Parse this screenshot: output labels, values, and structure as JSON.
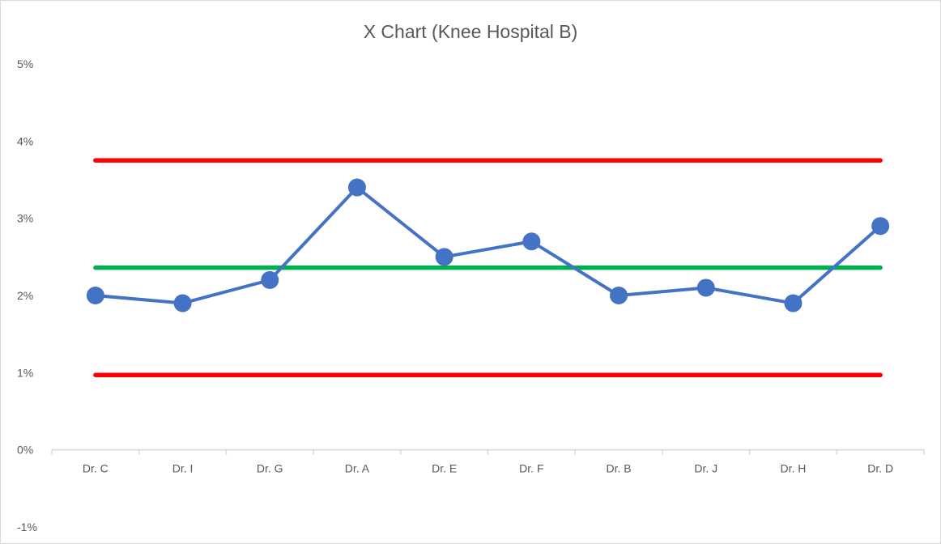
{
  "chart_data": {
    "type": "line",
    "title": "X Chart (Knee Hospital B)",
    "xlabel": "",
    "ylabel": "",
    "categories": [
      "Dr. C",
      "Dr. I",
      "Dr. G",
      "Dr. A",
      "Dr. E",
      "Dr. F",
      "Dr. B",
      "Dr. J",
      "Dr. H",
      "Dr. D"
    ],
    "series": [
      {
        "values": [
          2.0,
          1.9,
          2.2,
          3.4,
          2.5,
          2.7,
          2.0,
          2.1,
          1.9,
          2.9
        ],
        "color": "#4472c4"
      }
    ],
    "reference_lines": [
      {
        "value": 3.75,
        "color": "#ff0000"
      },
      {
        "value": 2.36,
        "color": "#00b050"
      },
      {
        "value": 0.97,
        "color": "#ff0000"
      }
    ],
    "ylim": [
      -1,
      5
    ],
    "yticks": [
      5,
      4,
      3,
      2,
      1,
      0,
      -1
    ],
    "ytick_labels": [
      "5%",
      "4%",
      "3%",
      "2%",
      "1%",
      "0%",
      "-1%"
    ],
    "grid": false,
    "legend": "none"
  }
}
